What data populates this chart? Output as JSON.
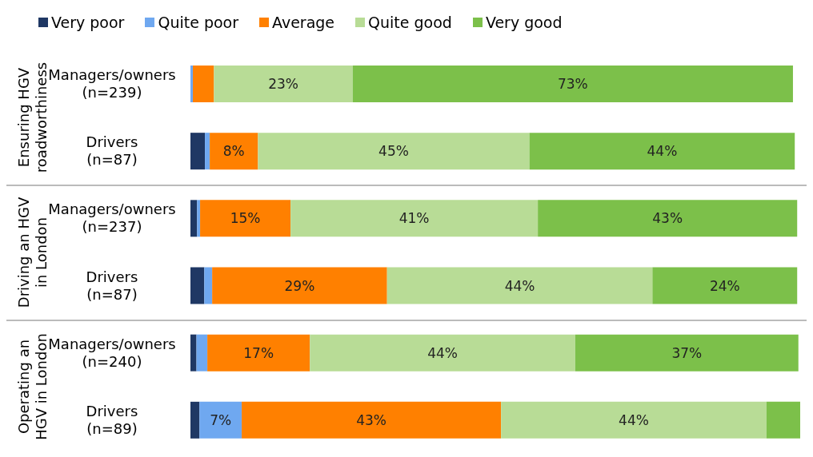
{
  "chart_data": {
    "type": "bar",
    "orientation": "horizontal",
    "stacked": true,
    "tick_labels": "y",
    "legend": "top",
    "categories": [
      "Managers/owners\n(n=239)",
      "Drivers\n(n=87)",
      "Managers/owners\n(n=237)",
      "Drivers\n(n=87)",
      "Managers/owners\n(n=240)",
      "Drivers\n(n=89)"
    ],
    "series": [
      {
        "name": "Very poor",
        "color": "#1f3864",
        "values": [
          0,
          2.4,
          1.1,
          2.3,
          1,
          1.5
        ],
        "value_labels": [
          null,
          null,
          null,
          null,
          null,
          null
        ]
      },
      {
        "name": "Quite poor",
        "color": "#6fa8f0",
        "values": [
          0.4,
          0.8,
          0.5,
          1.3,
          1.8,
          7
        ],
        "value_labels": [
          null,
          null,
          null,
          null,
          null,
          "7%"
        ]
      },
      {
        "name": "Average",
        "color": "#ff8000",
        "values": [
          3.5,
          8,
          15,
          29,
          17,
          43
        ],
        "value_labels": [
          null,
          "8%",
          "15%",
          "29%",
          "17%",
          "43%"
        ]
      },
      {
        "name": "Quite good",
        "color": "#b8dc96",
        "values": [
          23,
          45,
          41,
          44,
          44,
          44
        ],
        "value_labels": [
          "23%",
          "45%",
          "41%",
          "44%",
          "44%",
          "44%"
        ]
      },
      {
        "name": "Very good",
        "color": "#7cc04a",
        "values": [
          73,
          44,
          43,
          24,
          37,
          5.6
        ],
        "value_labels": [
          "73%",
          "44%",
          "43%",
          "24%",
          "37%",
          null
        ]
      }
    ],
    "annotations": [
      "Ensuring HGV roadworthiness",
      "Driving an HGV in London",
      "Operating an HGV in London"
    ]
  }
}
